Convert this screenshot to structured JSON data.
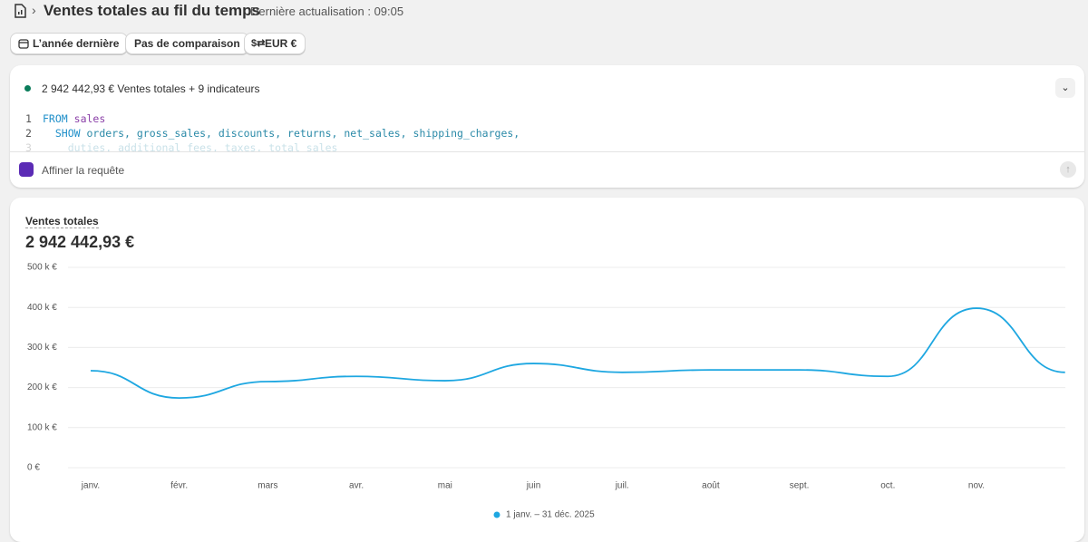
{
  "header": {
    "title": "Ventes totales au fil du temps",
    "subtitle": "Dernière actualisation : 09:05"
  },
  "filters": [
    "L’année dernière",
    "Pas de comparaison",
    "EUR €"
  ],
  "query": {
    "summary": "2 942 442,93 € Ventes totales + 9 indicateurs",
    "code": [
      {
        "line": 1,
        "keyword": "FROM",
        "rest": "sales"
      },
      {
        "line": 2,
        "keyword": "SHOW",
        "rest": "orders, gross_sales, discounts, returns, net_sales, shipping_charges,"
      },
      {
        "line": 3,
        "rest": "duties, additional_fees, taxes, total_sales"
      }
    ],
    "placeholder": "Affiner la requête"
  },
  "chart_data": {
    "type": "line",
    "title": "Ventes totales",
    "total": "2 942 442,93 €",
    "categories": [
      "janv.",
      "févr.",
      "mars",
      "avr.",
      "mai",
      "juin",
      "juil.",
      "août",
      "sept.",
      "oct.",
      "nov.",
      null
    ],
    "series": [
      {
        "name": "1 janv. – 31 déc. 2025",
        "color": "#1ea7e1",
        "values": [
          242000,
          174000,
          215000,
          228000,
          217000,
          260000,
          238000,
          244000,
          244000,
          228000,
          398000,
          238000
        ]
      }
    ],
    "ylim": [
      0,
      500000
    ],
    "yticks": [
      {
        "value": 0,
        "label": "0 €"
      },
      {
        "value": 100000,
        "label": "100 k €"
      },
      {
        "value": 200000,
        "label": "200 k €"
      },
      {
        "value": 300000,
        "label": "300 k €"
      },
      {
        "value": 400000,
        "label": "400 k €"
      },
      {
        "value": 500000,
        "label": "500 k €"
      }
    ],
    "grid": true,
    "legend": "bottom"
  }
}
